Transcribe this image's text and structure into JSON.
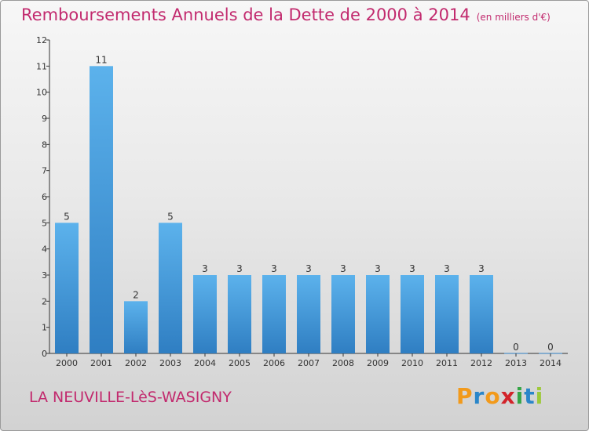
{
  "title": "Remboursements Annuels de la Dette de 2000 à 2014",
  "unit": "(en milliers d'€)",
  "city": "LA NEUVILLE-LèS-WASIGNY",
  "logo": {
    "text": "Proxiti",
    "letters": [
      {
        "ch": "P",
        "color": "#f29a1b"
      },
      {
        "ch": "r",
        "color": "#2a86c9"
      },
      {
        "ch": "o",
        "color": "#f29a1b"
      },
      {
        "ch": "x",
        "color": "#d2232a"
      },
      {
        "ch": "i",
        "color": "#35a445"
      },
      {
        "ch": "t",
        "color": "#2a86c9"
      },
      {
        "ch": "i",
        "color": "#9ec93a"
      }
    ]
  },
  "colors": {
    "title": "#c22a6e",
    "bar_light": "#5cb2ec",
    "bar_dark": "#2f7ec2",
    "axis": "#333333"
  },
  "chart_data": {
    "type": "bar",
    "categories": [
      "2000",
      "2001",
      "2002",
      "2003",
      "2004",
      "2005",
      "2006",
      "2007",
      "2008",
      "2009",
      "2010",
      "2011",
      "2012",
      "2013",
      "2014"
    ],
    "values": [
      5,
      11,
      2,
      5,
      3,
      3,
      3,
      3,
      3,
      3,
      3,
      3,
      3,
      0,
      0
    ],
    "y_ticks": [
      0,
      1,
      2,
      3,
      4,
      5,
      6,
      7,
      8,
      9,
      10,
      11,
      12
    ],
    "ylim": [
      0,
      12
    ],
    "grid": false,
    "legend": "none"
  }
}
